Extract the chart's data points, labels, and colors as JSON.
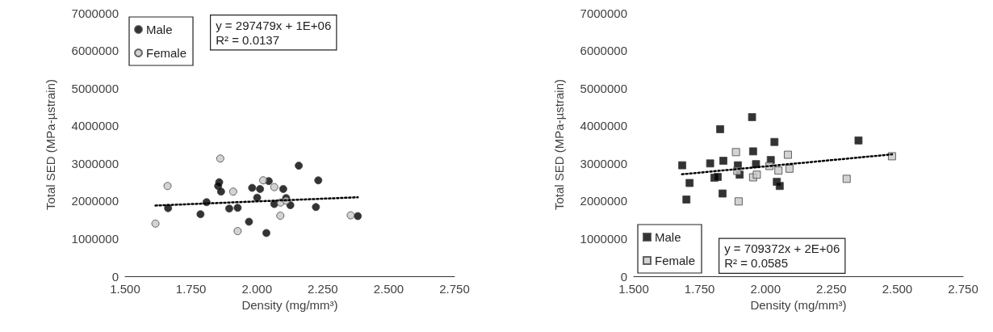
{
  "chart_data": [
    {
      "type": "scatter",
      "xlabel": "Density (mg/mm³)",
      "ylabel": "Total SED (MPa-µstrain)",
      "marker": "circle",
      "legend": "top left",
      "grid": false,
      "xlim": [
        1.5,
        2.75
      ],
      "xticks": [
        {
          "value": 1.5,
          "label": "1.500"
        },
        {
          "value": 1.75,
          "label": "1.750"
        },
        {
          "value": 2.0,
          "label": "2.000"
        },
        {
          "value": 2.25,
          "label": "2.250"
        },
        {
          "value": 2.5,
          "label": "2.500"
        },
        {
          "value": 2.75,
          "label": "2.750"
        }
      ],
      "ylim": [
        0,
        7000000
      ],
      "yticks": [
        0,
        1000000,
        2000000,
        3000000,
        4000000,
        5000000,
        6000000,
        7000000
      ],
      "annotations": [
        "y = 297479x + 1E+06\nR² = 0.0137"
      ],
      "series": [
        {
          "name": "Male",
          "color": "#000000",
          "x": [
            1.663,
            1.786,
            1.809,
            1.857,
            1.853,
            1.864,
            1.895,
            1.927,
            1.97,
            1.982,
            2.001,
            2.012,
            2.036,
            2.045,
            2.066,
            2.1,
            2.111,
            2.127,
            2.159,
            2.224,
            2.233,
            2.383
          ],
          "values": [
            1810000,
            1650000,
            1970000,
            2500000,
            2400000,
            2250000,
            1800000,
            1820000,
            1450000,
            2350000,
            2090000,
            2320000,
            1150000,
            2530000,
            1920000,
            2320000,
            2080000,
            1890000,
            2940000,
            1840000,
            2550000,
            1600000
          ]
        },
        {
          "name": "Female",
          "color": "#c8c8c8",
          "x": [
            1.615,
            1.661,
            1.861,
            1.91,
            1.927,
            2.024,
            2.066,
            2.09,
            2.111,
            2.089,
            2.356
          ],
          "values": [
            1400000,
            2400000,
            3130000,
            2250000,
            1200000,
            2550000,
            2370000,
            1960000,
            2010000,
            1610000,
            1620000
          ]
        },
        {
          "type": "line",
          "marker": "none",
          "line_style": "dotted",
          "color": "#000000",
          "x": [
            1.615,
            2.383
          ],
          "values": [
            1880000,
            2100000
          ]
        }
      ]
    },
    {
      "type": "scatter",
      "xlabel": "Density (mg/mm³)",
      "ylabel": "Total SED (MPa-µstrain)",
      "marker": "square",
      "legend": "bottom left",
      "grid": false,
      "xlim": [
        1.5,
        2.75
      ],
      "xticks": [
        {
          "value": 1.5,
          "label": "1.500"
        },
        {
          "value": 1.75,
          "label": "1.750"
        },
        {
          "value": 2.0,
          "label": "2.000"
        },
        {
          "value": 2.25,
          "label": "2.250"
        },
        {
          "value": 2.5,
          "label": "2.500"
        },
        {
          "value": 2.75,
          "label": "2.750"
        }
      ],
      "ylim": [
        0,
        7000000
      ],
      "yticks": [
        0,
        1000000,
        2000000,
        3000000,
        4000000,
        5000000,
        6000000,
        7000000
      ],
      "annotations": [
        "y = 709372x + 2E+06\nR² = 0.0585"
      ],
      "series": [
        {
          "name": "Male",
          "color": "#000000",
          "x": [
            1.684,
            1.712,
            1.7,
            1.79,
            1.828,
            1.84,
            1.806,
            1.819,
            1.837,
            1.895,
            1.902,
            1.949,
            1.953,
            1.964,
            2.02,
            2.034,
            2.043,
            2.054,
            2.353
          ],
          "values": [
            2950000,
            2480000,
            2040000,
            3000000,
            3910000,
            3070000,
            2620000,
            2640000,
            2200000,
            2950000,
            2700000,
            4230000,
            3320000,
            2980000,
            3090000,
            3570000,
            2510000,
            2400000,
            3610000
          ]
        },
        {
          "name": "Female",
          "color": "#c8c8c8",
          "x": [
            1.888,
            1.893,
            1.898,
            1.953,
            1.967,
            2.015,
            2.049,
            2.085,
            2.091,
            2.308,
            2.48
          ],
          "values": [
            3300000,
            2800000,
            1990000,
            2630000,
            2700000,
            2930000,
            2810000,
            3230000,
            2860000,
            2590000,
            3190000
          ]
        },
        {
          "type": "line",
          "marker": "none",
          "line_style": "dotted",
          "color": "#000000",
          "x": [
            1.683,
            2.48
          ],
          "values": [
            2710000,
            3240000
          ]
        }
      ]
    }
  ]
}
